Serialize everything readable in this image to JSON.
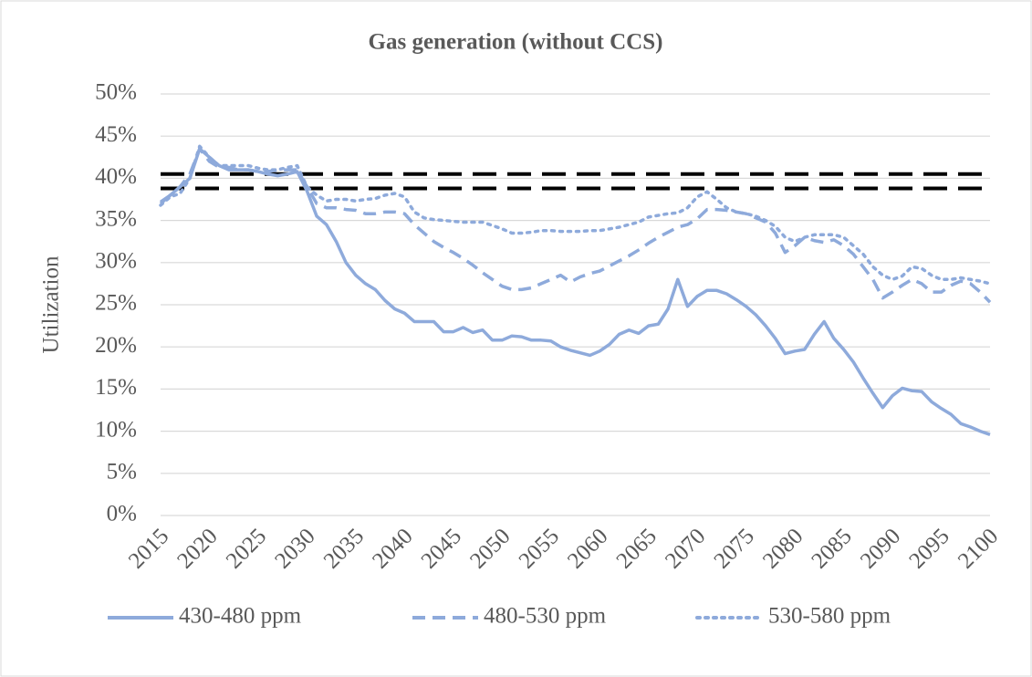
{
  "chart_data": {
    "type": "line",
    "title": "Gas generation (without CCS)",
    "y_label": "Utilization",
    "x": [
      2015,
      2016,
      2017,
      2018,
      2019,
      2020,
      2021,
      2022,
      2023,
      2024,
      2025,
      2026,
      2027,
      2028,
      2029,
      2030,
      2031,
      2032,
      2033,
      2034,
      2035,
      2036,
      2037,
      2038,
      2039,
      2040,
      2041,
      2042,
      2043,
      2044,
      2045,
      2046,
      2047,
      2048,
      2049,
      2050,
      2051,
      2052,
      2053,
      2054,
      2055,
      2056,
      2057,
      2058,
      2059,
      2060,
      2061,
      2062,
      2063,
      2064,
      2065,
      2066,
      2067,
      2068,
      2069,
      2070,
      2071,
      2072,
      2073,
      2074,
      2075,
      2076,
      2077,
      2078,
      2079,
      2080,
      2081,
      2082,
      2083,
      2084,
      2085,
      2086,
      2087,
      2088,
      2089,
      2090,
      2091,
      2092,
      2093,
      2094,
      2095,
      2096,
      2097,
      2098,
      2099,
      2100
    ],
    "xlim": [
      2015,
      2100
    ],
    "xticks": [
      2015,
      2020,
      2025,
      2030,
      2035,
      2040,
      2045,
      2050,
      2055,
      2060,
      2065,
      2070,
      2075,
      2080,
      2085,
      2090,
      2095,
      2100
    ],
    "ylim": [
      0,
      50
    ],
    "yticks": [
      {
        "value": 0,
        "label": "0%"
      },
      {
        "value": 5,
        "label": "5%"
      },
      {
        "value": 10,
        "label": "10%"
      },
      {
        "value": 15,
        "label": "15%"
      },
      {
        "value": 20,
        "label": "20%"
      },
      {
        "value": 25,
        "label": "25%"
      },
      {
        "value": 30,
        "label": "30%"
      },
      {
        "value": 35,
        "label": "35%"
      },
      {
        "value": 40,
        "label": "40%"
      },
      {
        "value": 45,
        "label": "45%"
      },
      {
        "value": 50,
        "label": "50%"
      }
    ],
    "grid": true,
    "legend": "bottom",
    "reference_lines": [
      {
        "value": 40.5,
        "color": "#000000"
      },
      {
        "value": 38.8,
        "color": "#000000"
      }
    ],
    "series": [
      {
        "name": "430-480 ppm",
        "color": "#8eaadb",
        "dash": "solid",
        "values": [
          37,
          38,
          39,
          40,
          43.5,
          42.5,
          41.5,
          41,
          41,
          41,
          40.8,
          40.5,
          40.3,
          40.5,
          40.8,
          38.5,
          35.5,
          34.5,
          32.5,
          30,
          28.5,
          27.5,
          26.8,
          25.5,
          24.5,
          24,
          23,
          23,
          23,
          21.8,
          21.8,
          22.3,
          21.7,
          22,
          20.8,
          20.8,
          21.3,
          21.2,
          20.8,
          20.8,
          20.7,
          20,
          19.6,
          19.3,
          19,
          19.5,
          20.3,
          21.5,
          22,
          21.6,
          22.5,
          22.7,
          24.5,
          28,
          24.8,
          26,
          26.7,
          26.7,
          26.3,
          25.6,
          24.8,
          23.8,
          22.5,
          21,
          19.2,
          19.5,
          19.7,
          21.5,
          23,
          21,
          19.7,
          18.2,
          16.3,
          14.5,
          12.8,
          14.2,
          15.1,
          14.8,
          14.7,
          13.5,
          12.7,
          12,
          10.9,
          10.5,
          10,
          9.6
        ]
      },
      {
        "name": "480-530 ppm",
        "color": "#8eaadb",
        "dash": "dashed",
        "values": [
          37.2,
          38,
          39,
          40.5,
          43.5,
          42,
          41.3,
          41.3,
          41,
          41,
          40.8,
          40.8,
          41,
          41,
          41,
          39,
          37,
          36.5,
          36.5,
          36.3,
          36.2,
          35.8,
          35.8,
          36,
          36,
          35.8,
          34.5,
          33.5,
          32.5,
          31.8,
          31.2,
          30.5,
          29.7,
          28.8,
          28,
          27.2,
          26.8,
          26.8,
          27,
          27.5,
          28,
          28.5,
          27.7,
          28.3,
          28.7,
          29,
          29.6,
          30.2,
          30.8,
          31.5,
          32.3,
          33,
          33.6,
          34.2,
          34.5,
          35.2,
          36.3,
          36.3,
          36.2,
          36,
          35.8,
          35.3,
          34.8,
          33.5,
          31.2,
          32,
          33,
          32.6,
          32.4,
          32.7,
          32,
          31,
          29.5,
          28,
          25.8,
          26.5,
          27.3,
          28,
          27.5,
          26.5,
          26.5,
          27.3,
          27.8,
          27.5,
          26.5,
          25.3
        ]
      },
      {
        "name": "530-580 ppm",
        "color": "#8eaadb",
        "dash": "dotted",
        "values": [
          36.8,
          37.8,
          38.2,
          40,
          43.8,
          42.5,
          41.5,
          41.5,
          41.5,
          41.5,
          41.2,
          41,
          41,
          41.3,
          41.5,
          39,
          38,
          37.3,
          37.5,
          37.5,
          37.3,
          37.5,
          37.6,
          38,
          38.2,
          37.8,
          36,
          35.3,
          35.1,
          35,
          34.9,
          34.8,
          34.8,
          34.8,
          34.4,
          34,
          33.5,
          33.5,
          33.6,
          33.8,
          33.8,
          33.7,
          33.7,
          33.7,
          33.8,
          33.8,
          34,
          34.2,
          34.5,
          34.8,
          35.4,
          35.6,
          35.8,
          35.9,
          36.5,
          37.8,
          38.4,
          37.5,
          36.5,
          36,
          35.8,
          35.5,
          35,
          34.3,
          33,
          32.5,
          33,
          33.3,
          33.3,
          33.3,
          33,
          32,
          31,
          29.5,
          28.5,
          28,
          28.4,
          29.5,
          29.3,
          28.5,
          28,
          28,
          28.2,
          28,
          27.8,
          27.5
        ]
      }
    ]
  }
}
